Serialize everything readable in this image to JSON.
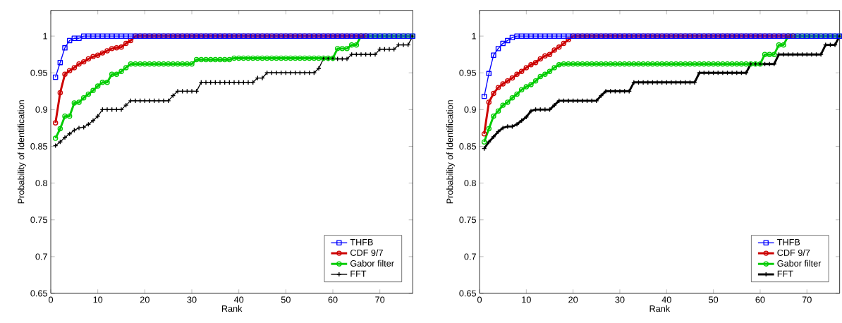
{
  "chart_data": [
    {
      "type": "line",
      "xlabel": "Rank",
      "ylabel": "Probability of Identification",
      "xlim": [
        0,
        77
      ],
      "ylim": [
        0.65,
        1.035
      ],
      "xticks": [
        0,
        10,
        20,
        30,
        40,
        50,
        60,
        70
      ],
      "yticks": [
        0.65,
        0.7,
        0.75,
        0.8,
        0.85,
        0.9,
        0.95,
        1
      ],
      "legend": "bottom right",
      "grid": false,
      "line_style": "solid",
      "x": [
        1,
        2,
        3,
        4,
        5,
        6,
        7,
        8,
        9,
        10,
        11,
        12,
        13,
        14,
        15,
        16,
        17,
        18,
        19,
        20,
        21,
        22,
        23,
        24,
        25,
        26,
        27,
        28,
        29,
        30,
        31,
        32,
        33,
        34,
        35,
        36,
        37,
        38,
        39,
        40,
        41,
        42,
        43,
        44,
        45,
        46,
        47,
        48,
        49,
        50,
        51,
        52,
        53,
        54,
        55,
        56,
        57,
        58,
        59,
        60,
        61,
        62,
        63,
        64,
        65,
        66,
        67,
        68,
        69,
        70,
        71,
        72,
        73,
        74,
        75,
        76,
        77
      ],
      "series": [
        {
          "name": "THFB",
          "color": "#0000ff",
          "marker": "square",
          "values": [
            0.944,
            0.964,
            0.984,
            0.994,
            0.997,
            0.997,
            1,
            1,
            1,
            1,
            1,
            1,
            1,
            1,
            1,
            1,
            1,
            1,
            1,
            1,
            1,
            1,
            1,
            1,
            1,
            1,
            1,
            1,
            1,
            1,
            1,
            1,
            1,
            1,
            1,
            1,
            1,
            1,
            1,
            1,
            1,
            1,
            1,
            1,
            1,
            1,
            1,
            1,
            1,
            1,
            1,
            1,
            1,
            1,
            1,
            1,
            1,
            1,
            1,
            1,
            1,
            1,
            1,
            1,
            1,
            1,
            1,
            1,
            1,
            1,
            1,
            1,
            1,
            1,
            1,
            1,
            1
          ]
        },
        {
          "name": "CDF 9/7",
          "color": "#cc0000",
          "marker": "circle",
          "values": [
            0.882,
            0.923,
            0.948,
            0.953,
            0.957,
            0.962,
            0.965,
            0.969,
            0.972,
            0.974,
            0.977,
            0.98,
            0.983,
            0.984,
            0.985,
            0.99,
            0.994,
            1,
            1,
            1,
            1,
            1,
            1,
            1,
            1,
            1,
            1,
            1,
            1,
            1,
            1,
            1,
            1,
            1,
            1,
            1,
            1,
            1,
            1,
            1,
            1,
            1,
            1,
            1,
            1,
            1,
            1,
            1,
            1,
            1,
            1,
            1,
            1,
            1,
            1,
            1,
            1,
            1,
            1,
            1,
            1,
            1,
            1,
            1,
            1,
            1,
            1,
            null,
            null,
            null,
            null,
            null,
            null,
            null,
            null,
            null,
            null
          ]
        },
        {
          "name": "Gabor filter",
          "color": "#00cc00",
          "marker": "circle",
          "values": [
            0.861,
            0.874,
            0.891,
            0.891,
            0.909,
            0.91,
            0.916,
            0.921,
            0.926,
            0.932,
            0.937,
            0.937,
            0.948,
            0.948,
            0.952,
            0.957,
            0.962,
            0.962,
            0.962,
            0.962,
            0.962,
            0.962,
            0.962,
            0.962,
            0.962,
            0.962,
            0.962,
            0.962,
            0.962,
            0.962,
            0.968,
            0.968,
            0.968,
            0.968,
            0.968,
            0.968,
            0.968,
            0.968,
            0.97,
            0.97,
            0.97,
            0.97,
            0.97,
            0.97,
            0.97,
            0.97,
            0.97,
            0.97,
            0.97,
            0.97,
            0.97,
            0.97,
            0.97,
            0.97,
            0.97,
            0.97,
            0.97,
            0.97,
            0.97,
            0.97,
            0.983,
            0.983,
            0.983,
            0.988,
            0.988,
            1,
            1,
            1,
            1,
            1,
            1,
            1,
            1,
            1,
            1,
            1,
            1
          ]
        },
        {
          "name": "FFT",
          "color": "#000000",
          "marker": "cross",
          "values": [
            0.851,
            0.856,
            0.862,
            0.867,
            0.872,
            0.875,
            0.876,
            0.88,
            0.885,
            0.891,
            0.9,
            0.9,
            0.9,
            0.9,
            0.9,
            0.906,
            0.912,
            0.912,
            0.912,
            0.912,
            0.912,
            0.912,
            0.912,
            0.912,
            0.912,
            0.919,
            0.925,
            0.925,
            0.925,
            0.925,
            0.925,
            0.937,
            0.937,
            0.937,
            0.937,
            0.937,
            0.937,
            0.937,
            0.937,
            0.937,
            0.937,
            0.937,
            0.937,
            0.943,
            0.943,
            0.95,
            0.95,
            0.95,
            0.95,
            0.95,
            0.95,
            0.95,
            0.95,
            0.95,
            0.95,
            0.95,
            0.956,
            0.969,
            0.969,
            0.969,
            0.969,
            0.969,
            0.969,
            0.975,
            0.975,
            0.975,
            0.975,
            0.975,
            0.975,
            0.982,
            0.982,
            0.982,
            0.982,
            0.988,
            0.988,
            0.988,
            1
          ]
        }
      ]
    },
    {
      "type": "line",
      "xlabel": "Rank",
      "ylabel": "Probability of Identification",
      "xlim": [
        0,
        77
      ],
      "ylim": [
        0.65,
        1.035
      ],
      "xticks": [
        0,
        10,
        20,
        30,
        40,
        50,
        60,
        70
      ],
      "yticks": [
        0.65,
        0.7,
        0.75,
        0.8,
        0.85,
        0.9,
        0.95,
        1
      ],
      "legend": "bottom right",
      "grid": false,
      "line_style": "solid",
      "x": [
        1,
        2,
        3,
        4,
        5,
        6,
        7,
        8,
        9,
        10,
        11,
        12,
        13,
        14,
        15,
        16,
        17,
        18,
        19,
        20,
        21,
        22,
        23,
        24,
        25,
        26,
        27,
        28,
        29,
        30,
        31,
        32,
        33,
        34,
        35,
        36,
        37,
        38,
        39,
        40,
        41,
        42,
        43,
        44,
        45,
        46,
        47,
        48,
        49,
        50,
        51,
        52,
        53,
        54,
        55,
        56,
        57,
        58,
        59,
        60,
        61,
        62,
        63,
        64,
        65,
        66,
        67,
        68,
        69,
        70,
        71,
        72,
        73,
        74,
        75,
        76,
        77
      ],
      "series": [
        {
          "name": "THFB",
          "color": "#0000ff",
          "marker": "square",
          "values": [
            0.918,
            0.949,
            0.974,
            0.983,
            0.99,
            0.994,
            0.998,
            1,
            1,
            1,
            1,
            1,
            1,
            1,
            1,
            1,
            1,
            1,
            1,
            1,
            1,
            1,
            1,
            1,
            1,
            1,
            1,
            1,
            1,
            1,
            1,
            1,
            1,
            1,
            1,
            1,
            1,
            1,
            1,
            1,
            1,
            1,
            1,
            1,
            1,
            1,
            1,
            1,
            1,
            1,
            1,
            1,
            1,
            1,
            1,
            1,
            1,
            1,
            1,
            1,
            1,
            1,
            1,
            1,
            1,
            1,
            1,
            1,
            1,
            1,
            1,
            1,
            1,
            1,
            1,
            1,
            1
          ]
        },
        {
          "name": "CDF 9/7",
          "color": "#cc0000",
          "marker": "circle",
          "values": [
            0.867,
            0.91,
            0.922,
            0.93,
            0.935,
            0.939,
            0.943,
            0.948,
            0.952,
            0.957,
            0.961,
            0.964,
            0.969,
            0.973,
            0.975,
            0.981,
            0.985,
            0.99,
            0.995,
            1,
            1,
            1,
            1,
            1,
            1,
            1,
            1,
            1,
            1,
            1,
            1,
            1,
            1,
            1,
            1,
            1,
            1,
            1,
            1,
            1,
            1,
            1,
            1,
            1,
            1,
            1,
            1,
            1,
            1,
            1,
            1,
            1,
            1,
            1,
            1,
            1,
            1,
            1,
            1,
            1,
            1,
            1,
            1,
            1,
            1,
            1,
            1,
            null,
            null,
            null,
            null,
            null,
            null,
            null,
            null,
            null,
            null
          ]
        },
        {
          "name": "Gabor filter",
          "color": "#00cc00",
          "marker": "circle",
          "values": [
            0.856,
            0.874,
            0.891,
            0.898,
            0.906,
            0.91,
            0.916,
            0.921,
            0.927,
            0.931,
            0.934,
            0.939,
            0.945,
            0.948,
            0.952,
            0.957,
            0.961,
            0.962,
            0.962,
            0.962,
            0.962,
            0.962,
            0.962,
            0.962,
            0.962,
            0.962,
            0.962,
            0.962,
            0.962,
            0.962,
            0.962,
            0.962,
            0.962,
            0.962,
            0.962,
            0.962,
            0.962,
            0.962,
            0.962,
            0.962,
            0.962,
            0.962,
            0.962,
            0.962,
            0.962,
            0.962,
            0.962,
            0.962,
            0.962,
            0.962,
            0.962,
            0.962,
            0.962,
            0.962,
            0.962,
            0.962,
            0.962,
            0.962,
            0.962,
            0.962,
            0.975,
            0.975,
            0.975,
            0.988,
            0.988,
            1,
            1,
            1,
            1,
            1,
            1,
            1,
            1,
            1,
            1,
            1,
            1
          ]
        },
        {
          "name": "FFT",
          "color": "#000000",
          "marker": "cross",
          "values": [
            0.847,
            0.856,
            0.863,
            0.87,
            0.875,
            0.877,
            0.877,
            0.88,
            0.885,
            0.89,
            0.898,
            0.9,
            0.9,
            0.9,
            0.9,
            0.906,
            0.912,
            0.912,
            0.912,
            0.912,
            0.912,
            0.912,
            0.912,
            0.912,
            0.912,
            0.919,
            0.925,
            0.925,
            0.925,
            0.925,
            0.925,
            0.925,
            0.937,
            0.937,
            0.937,
            0.937,
            0.937,
            0.937,
            0.937,
            0.937,
            0.937,
            0.937,
            0.937,
            0.937,
            0.937,
            0.937,
            0.95,
            0.95,
            0.95,
            0.95,
            0.95,
            0.95,
            0.95,
            0.95,
            0.95,
            0.95,
            0.95,
            0.962,
            0.962,
            0.962,
            0.962,
            0.962,
            0.962,
            0.975,
            0.975,
            0.975,
            0.975,
            0.975,
            0.975,
            0.975,
            0.975,
            0.975,
            0.975,
            0.988,
            0.988,
            0.988,
            1
          ]
        }
      ]
    }
  ]
}
